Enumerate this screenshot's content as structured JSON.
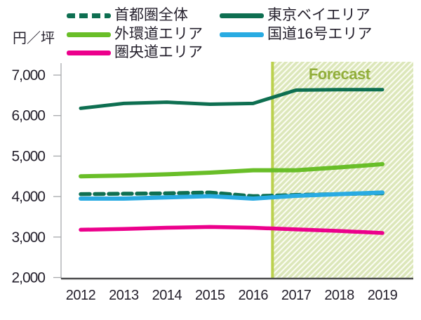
{
  "figure": {
    "unit_label": "円／坪",
    "forecast_label": "Forecast"
  },
  "legend": {
    "items": [
      {
        "label": "首都圏全体",
        "color": "#0E6F51",
        "dashed": true
      },
      {
        "label": "東京ベイエリア",
        "color": "#0E6F51",
        "dashed": false
      },
      {
        "label": "外環道エリア",
        "color": "#69BE28",
        "dashed": false
      },
      {
        "label": "国道16号エリア",
        "color": "#29ABE2",
        "dashed": false
      },
      {
        "label": "圏央道エリア",
        "color": "#EC008C",
        "dashed": false
      }
    ]
  },
  "chart_data": {
    "type": "line",
    "title": "",
    "ylabel": "円／坪",
    "xlabel": "",
    "x": [
      2012,
      2013,
      2014,
      2015,
      2016,
      2017,
      2018,
      2019
    ],
    "x_tick_labels": [
      "2012",
      "2013",
      "2014",
      "2015",
      "2016",
      "2017",
      "2018",
      "2019"
    ],
    "ylim": [
      2000,
      7000
    ],
    "yticks": [
      2000,
      3000,
      4000,
      5000,
      6000,
      7000
    ],
    "ytick_labels": [
      "2,000",
      "3,000",
      "4,000",
      "5,000",
      "6,000",
      "7,000"
    ],
    "grid": false,
    "legend_position": "top",
    "forecast": {
      "label": "Forecast",
      "start_x": 2016.45,
      "line_color": "#BBD14E",
      "hatch_color": "#DCE7BA",
      "hatch_bg": "#FBFCF3",
      "text_color": "#92AE3B"
    },
    "series": [
      {
        "name": "首都圏全体",
        "style": "dashed",
        "color": "#0E6F51",
        "values": [
          4060,
          4070,
          4080,
          4100,
          4010,
          4040,
          4060,
          4080
        ]
      },
      {
        "name": "東京ベイエリア",
        "style": "solid",
        "color": "#0E6F51",
        "values": [
          6180,
          6300,
          6330,
          6280,
          6300,
          6630,
          6640,
          6640
        ]
      },
      {
        "name": "外環道エリア",
        "style": "solid",
        "color": "#69BE28",
        "values": [
          4500,
          4520,
          4550,
          4590,
          4650,
          4650,
          4720,
          4800
        ]
      },
      {
        "name": "国道16号エリア",
        "style": "solid",
        "color": "#29ABE2",
        "values": [
          3950,
          3950,
          3980,
          4010,
          3950,
          4020,
          4060,
          4100
        ]
      },
      {
        "name": "圏央道エリア",
        "style": "solid",
        "color": "#EC008C",
        "values": [
          3180,
          3200,
          3230,
          3250,
          3230,
          3190,
          3150,
          3100
        ]
      }
    ],
    "draw_order": [
      2,
      0,
      3,
      4,
      1
    ],
    "axis_color": "#A7A9AC",
    "baseline_color": "#4A4A4C",
    "text_color": "#231F2B"
  }
}
